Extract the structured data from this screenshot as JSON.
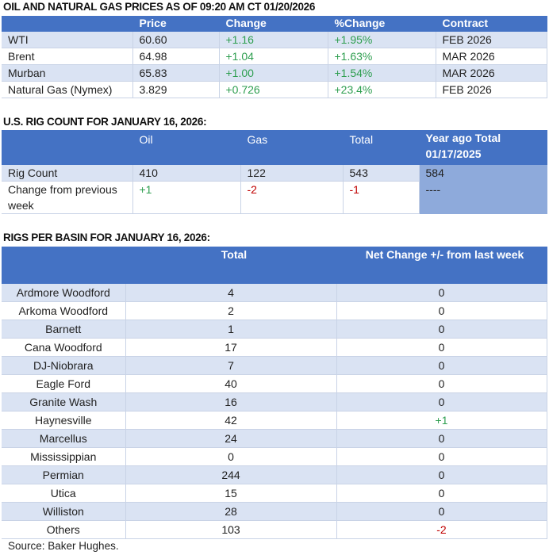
{
  "prices": {
    "title": "OIL AND NATURAL GAS PRICES AS OF 09:20 AM CT 01/20/2026",
    "headers": [
      "",
      "Price",
      "Change",
      "%Change",
      "Contract"
    ],
    "rows": [
      [
        "WTI",
        "60.60",
        "+1.16",
        "+1.95%",
        "FEB 2026"
      ],
      [
        "Brent",
        "64.98",
        "+1.04",
        "+1.63%",
        "MAR 2026"
      ],
      [
        "Murban",
        "65.83",
        "+1.00",
        "+1.54%",
        "MAR 2026"
      ],
      [
        "Natural Gas (Nymex)",
        "3.829",
        "+0.726",
        "+23.4%",
        "FEB 2026"
      ]
    ]
  },
  "rigs": {
    "title": "U.S. RIG COUNT FOR JANUARY 16, 2026:",
    "headers": [
      "",
      "Oil",
      "Gas",
      "Total",
      "Year ago Total 01/17/2025"
    ],
    "rows": [
      [
        "Rig Count",
        "410",
        "122",
        "543",
        "584"
      ],
      [
        "Change from previous week",
        "+1",
        "-2",
        "-1",
        "----"
      ]
    ]
  },
  "basins": {
    "title": "RIGS PER BASIN FOR JANUARY 16, 2026:",
    "headers": [
      "",
      "Total",
      "Net Change +/- from last week"
    ],
    "rows": [
      [
        "Ardmore Woodford",
        "4",
        "0"
      ],
      [
        "Arkoma Woodford",
        "2",
        "0"
      ],
      [
        "Barnett",
        "1",
        "0"
      ],
      [
        "Cana Woodford",
        "17",
        "0"
      ],
      [
        "DJ-Niobrara",
        "7",
        "0"
      ],
      [
        "Eagle Ford",
        "40",
        "0"
      ],
      [
        "Granite Wash",
        "16",
        "0"
      ],
      [
        "Haynesville",
        "42",
        "+1"
      ],
      [
        "Marcellus",
        "24",
        "0"
      ],
      [
        "Mississippian",
        "0",
        "0"
      ],
      [
        "Permian",
        "244",
        "0"
      ],
      [
        "Utica",
        "15",
        "0"
      ],
      [
        "Williston",
        "28",
        "0"
      ],
      [
        "Others",
        "103",
        "-2"
      ]
    ]
  },
  "source": "Source: Baker Hughes.",
  "colors": {
    "header": "#4472c4",
    "row_alt": "#dae3f3",
    "positive": "#2e9e4f",
    "negative": "#c00000"
  }
}
